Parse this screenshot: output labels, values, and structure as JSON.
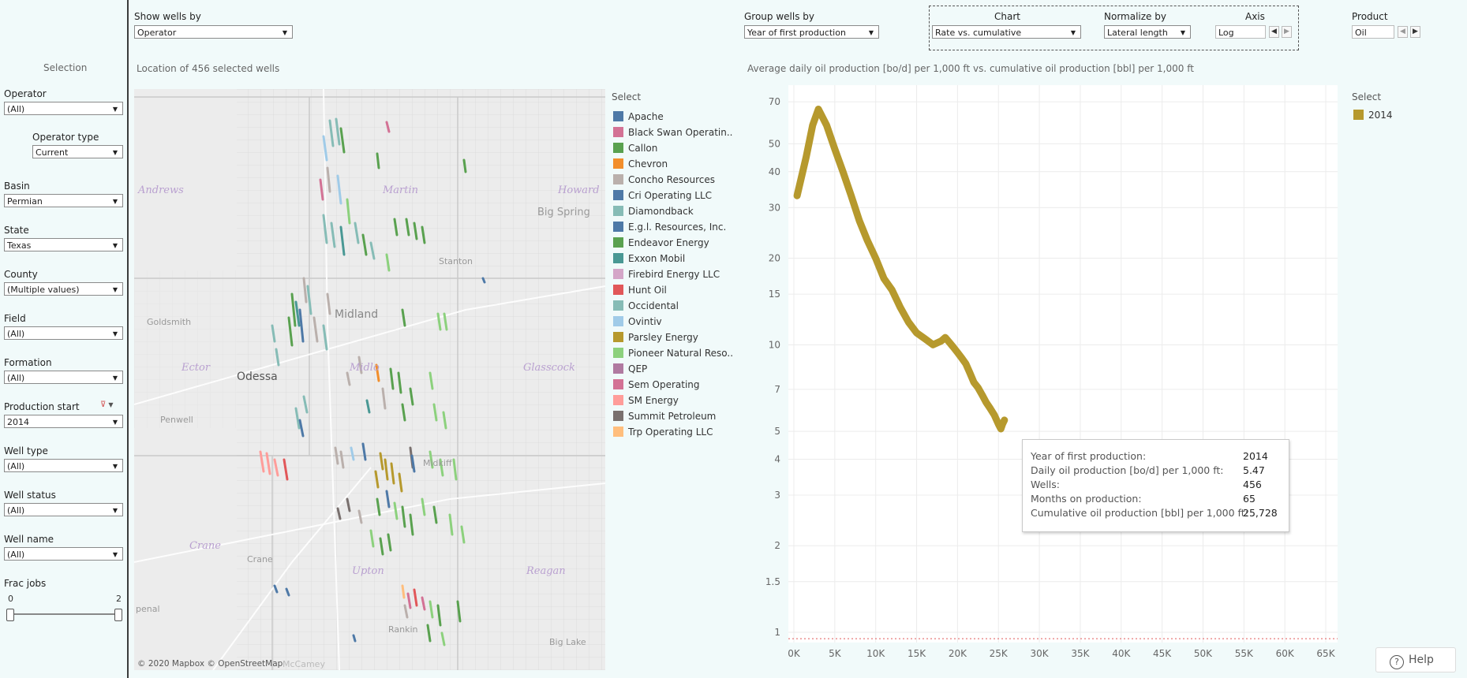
{
  "header": {
    "show_wells_by_label": "Show wells by",
    "show_wells_by_value": "Operator",
    "group_wells_by_label": "Group wells by",
    "group_wells_by_value": "Year of first production",
    "chart_label": "Chart",
    "chart_value": "Rate vs. cumulative",
    "normalize_label": "Normalize by",
    "normalize_value": "Lateral length",
    "axis_label": "Axis",
    "axis_value": "Log",
    "product_label": "Product",
    "product_value": "Oil"
  },
  "sidebar": {
    "title": "Selection",
    "operator": {
      "label": "Operator",
      "value": "(All)"
    },
    "operator_type": {
      "label": "Operator type",
      "value": "Current"
    },
    "basin": {
      "label": "Basin",
      "value": "Permian"
    },
    "state": {
      "label": "State",
      "value": "Texas"
    },
    "county": {
      "label": "County",
      "value": "(Multiple values)"
    },
    "field": {
      "label": "Field",
      "value": "(All)"
    },
    "formation": {
      "label": "Formation",
      "value": "(All)"
    },
    "production_start": {
      "label": "Production start",
      "value": "2014"
    },
    "well_type": {
      "label": "Well type",
      "value": "(All)"
    },
    "well_status": {
      "label": "Well status",
      "value": "(All)"
    },
    "well_name": {
      "label": "Well name",
      "value": "(All)"
    },
    "frac_jobs": {
      "label": "Frac jobs",
      "min": "0",
      "max": "2"
    }
  },
  "map": {
    "title": "Location of 456 selected wells",
    "places": {
      "andrews": "Andrews",
      "martin": "Martin",
      "howard": "Howard",
      "big_spring": "Big Spring",
      "stanton": "Stanton",
      "goldsmith": "Goldsmith",
      "midland": "Midland",
      "ector": "Ector",
      "odessa": "Odessa",
      "midlo": "Midlo",
      "glasscock": "Glasscock",
      "penwell": "Penwell",
      "midkiff": "Midkiff",
      "crane_county": "Crane",
      "crane": "Crane",
      "upton": "Upton",
      "reagan": "Reagan",
      "penal": "penal",
      "rankin": "Rankin",
      "big_lake": "Big Lake",
      "mccamey": "McCamey"
    },
    "attribution": "© 2020 Mapbox  © OpenStreetMap"
  },
  "legend": {
    "title": "Select",
    "items": [
      {
        "label": "Apache",
        "color": "#4e79a7"
      },
      {
        "label": "Black Swan Operatin..",
        "color": "#d37295"
      },
      {
        "label": "Callon",
        "color": "#59a14f"
      },
      {
        "label": "Chevron",
        "color": "#f28e2b"
      },
      {
        "label": "Concho Resources",
        "color": "#bab0ac"
      },
      {
        "label": "Cri Operating LLC",
        "color": "#4e79a7"
      },
      {
        "label": "Diamondback",
        "color": "#86bcb6"
      },
      {
        "label": "E.g.l. Resources, Inc.",
        "color": "#4e79a7"
      },
      {
        "label": "Endeavor Energy",
        "color": "#59a14f"
      },
      {
        "label": "Exxon Mobil",
        "color": "#499894"
      },
      {
        "label": "Firebird Energy LLC",
        "color": "#d4a6c8"
      },
      {
        "label": "Hunt Oil",
        "color": "#e15759"
      },
      {
        "label": "Occidental",
        "color": "#86bcb6"
      },
      {
        "label": "Ovintiv",
        "color": "#a0cbe8"
      },
      {
        "label": "Parsley Energy",
        "color": "#b6992d"
      },
      {
        "label": "Pioneer Natural Reso..",
        "color": "#8cd17d"
      },
      {
        "label": "QEP",
        "color": "#b07aa1"
      },
      {
        "label": "Sem Operating",
        "color": "#d37295"
      },
      {
        "label": "SM Energy",
        "color": "#ff9d9a"
      },
      {
        "label": "Summit Petroleum",
        "color": "#79706e"
      },
      {
        "label": "Trp Operating LLC",
        "color": "#ffbe7d"
      }
    ]
  },
  "chart_title": "Average daily oil production [bo/d] per 1,000 ft vs. cumulative oil production [bbl] per 1,000 ft",
  "chart_legend": {
    "title": "Select",
    "item": "2014",
    "color": "#b6992d"
  },
  "chart_data": {
    "type": "line",
    "scale_y": "log",
    "grid": true,
    "xlim": [
      0,
      65000
    ],
    "x_ticks": [
      "0K",
      "5K",
      "10K",
      "15K",
      "20K",
      "25K",
      "30K",
      "35K",
      "40K",
      "45K",
      "50K",
      "55K",
      "60K",
      "65K"
    ],
    "y_ticks": [
      "1",
      "1.5",
      "2",
      "3",
      "4",
      "5",
      "7",
      "10",
      "15",
      "20",
      "30",
      "40",
      "50",
      "70"
    ],
    "series": [
      {
        "name": "2014",
        "color": "#b6992d",
        "x": [
          400,
          1500,
          2300,
          3000,
          4000,
          5000,
          6000,
          7000,
          8000,
          9000,
          10000,
          11000,
          12000,
          13000,
          14000,
          15000,
          16000,
          17000,
          18000,
          18500,
          19000,
          19500,
          20000,
          20500,
          21000,
          21500,
          22000,
          22500,
          23000,
          23500,
          24000,
          24500,
          25000,
          25300,
          25500,
          25728
        ],
        "y": [
          33,
          45,
          58,
          66,
          58,
          48,
          40,
          33,
          27,
          23,
          20,
          17,
          15.5,
          13.5,
          12,
          11,
          10.5,
          10,
          10.3,
          10.6,
          10.2,
          9.8,
          9.4,
          9.0,
          8.6,
          8.0,
          7.4,
          7.1,
          6.7,
          6.3,
          6.0,
          5.7,
          5.3,
          5.1,
          5.3,
          5.47
        ]
      }
    ],
    "tooltip": {
      "year_label": "Year of first production:",
      "year": "2014",
      "rate_label": "Daily oil production [bo/d] per 1,000 ft:",
      "rate": "5.47",
      "wells_label": "Wells:",
      "wells": "456",
      "months_label": "Months on production:",
      "months": "65",
      "cum_label": "Cumulative oil production [bbl] per 1,000 ft:",
      "cum": "25,728"
    }
  },
  "help": {
    "label": "Help"
  }
}
